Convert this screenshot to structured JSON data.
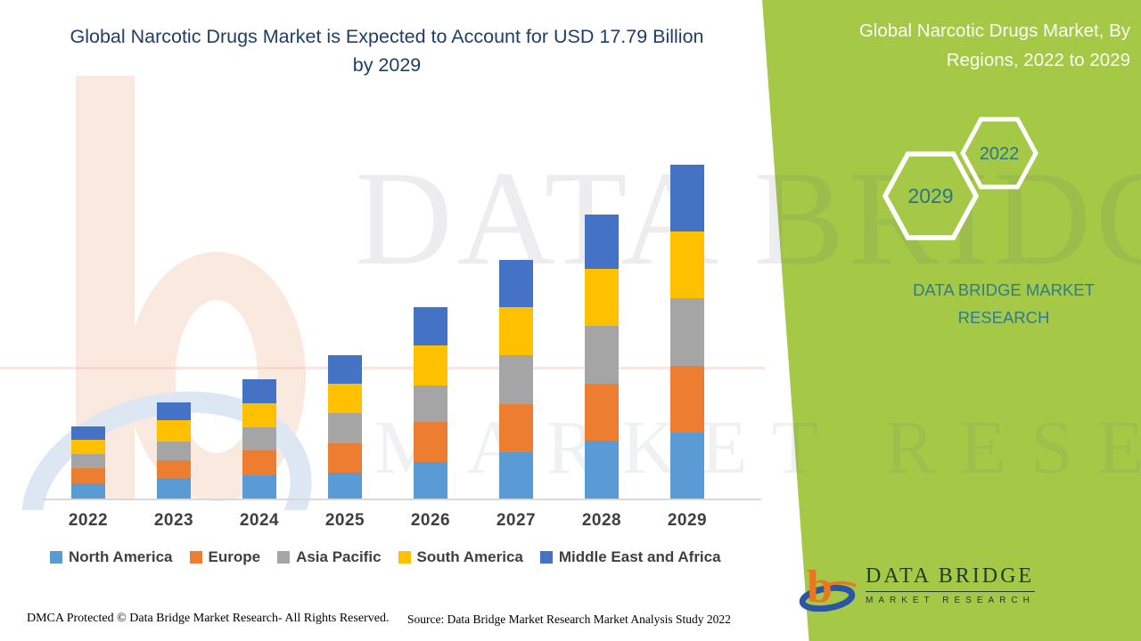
{
  "header": {
    "main_title": "Global Narcotic Drugs Market is Expected to Account for USD 17.79 Billion by 2029",
    "panel_title": "Global Narcotic Drugs Market, By Regions, 2022 to 2029"
  },
  "side_panel": {
    "accent_color": "#A5C847",
    "teal_color": "#2E7D8E",
    "hexagons": {
      "back": "2022",
      "front": "2029"
    },
    "brand_caption": "DATA BRIDGE MARKET RESEARCH",
    "logo": {
      "name": "DATA BRIDGE",
      "subtitle": "MARKET RESEARCH"
    }
  },
  "watermarks": {
    "text_primary": "DATA BRIDGE",
    "text_secondary": "MARKET RESEARCH"
  },
  "footer": {
    "dmca": "DMCA Protected © Data Bridge Market Research- All Rights Reserved.",
    "source": "Source: Data Bridge Market Research Market Analysis Study 2022"
  },
  "chart_data": {
    "type": "bar",
    "stacked": true,
    "title": "Global Narcotic Drugs Market is Expected to Account for USD 17.79 Billion by 2029",
    "unit": "USD Billion",
    "xlabel": "",
    "ylabel": "",
    "grid": false,
    "y_axis_visible": false,
    "legend_position": "bottom",
    "ylim": [
      0,
      18
    ],
    "categories": [
      "2022",
      "2023",
      "2024",
      "2025",
      "2026",
      "2027",
      "2028",
      "2029"
    ],
    "series": [
      {
        "name": "North America",
        "color": "#5B9BD5",
        "values": [
          0.79,
          1.08,
          1.22,
          1.38,
          1.95,
          2.45,
          3.08,
          3.52
        ]
      },
      {
        "name": "Europe",
        "color": "#ED7D31",
        "values": [
          0.82,
          0.98,
          1.34,
          1.58,
          2.12,
          2.56,
          3.02,
          3.56
        ]
      },
      {
        "name": "Asia Pacific",
        "color": "#A5A5A5",
        "values": [
          0.76,
          0.98,
          1.23,
          1.61,
          1.95,
          2.62,
          3.12,
          3.59
        ]
      },
      {
        "name": "South America",
        "color": "#FFC000",
        "values": [
          0.76,
          1.15,
          1.3,
          1.55,
          2.13,
          2.59,
          3.0,
          3.57
        ]
      },
      {
        "name": "Middle East and Africa",
        "color": "#4472C4",
        "values": [
          0.7,
          0.95,
          1.27,
          1.52,
          2.03,
          2.5,
          2.93,
          3.55
        ]
      }
    ],
    "totals": [
      3.83,
      5.14,
      6.36,
      7.64,
      10.18,
      12.72,
      15.15,
      17.79
    ]
  }
}
